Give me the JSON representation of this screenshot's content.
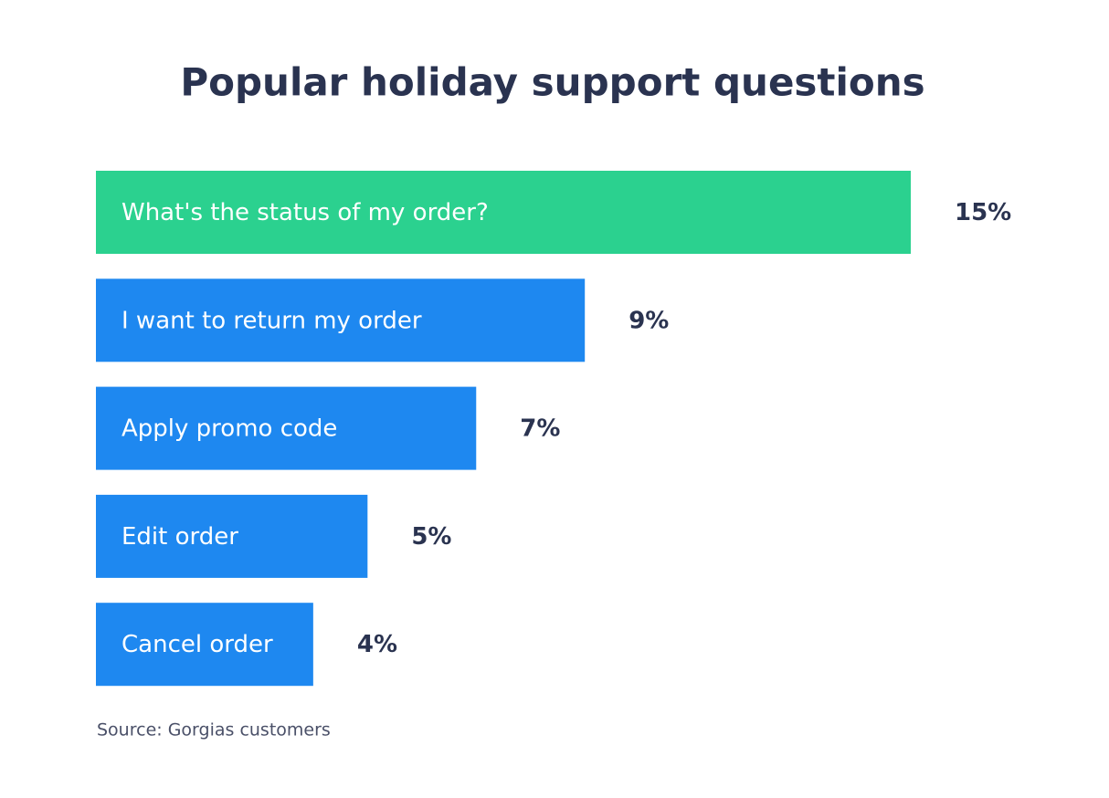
{
  "chart_data": {
    "type": "bar",
    "orientation": "horizontal",
    "title": "Popular holiday support questions",
    "categories": [
      "What's the status of my order?",
      "I want to return my order",
      "Apply promo code",
      "Edit order",
      "Cancel order"
    ],
    "values": [
      15,
      9,
      7,
      5,
      4
    ],
    "value_labels": [
      "15%",
      "9%",
      "7%",
      "5%",
      "4%"
    ],
    "colors": [
      "#2bd18f",
      "#1e88f0",
      "#1e88f0",
      "#1e88f0",
      "#1e88f0"
    ],
    "source": "Source: Gorgias customers"
  }
}
